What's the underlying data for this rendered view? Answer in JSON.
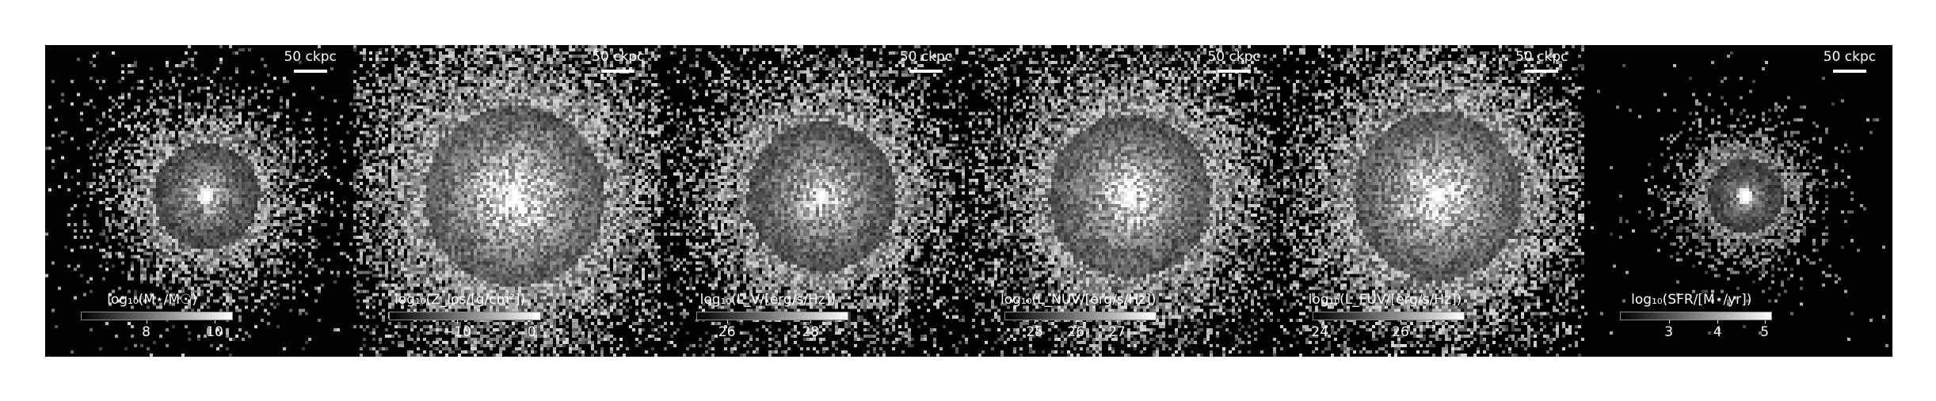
{
  "panels": [
    {
      "scale_label": "50 ckpc",
      "colorbar_label": "log₁₀(M⋆/M☉)",
      "ticks": [
        {
          "value": "8",
          "frac": 0.43
        },
        {
          "value": "10",
          "frac": 0.88
        }
      ],
      "brightness": 1.0,
      "spread": 0.85,
      "core": 1.0,
      "bg": 0.05
    },
    {
      "scale_label": "50 ckpc",
      "colorbar_label": "log₁₀(Z_los/[g/cm²])",
      "ticks": [
        {
          "value": "−10",
          "frac": 0.45
        },
        {
          "value": "0",
          "frac": 0.94
        }
      ],
      "brightness": 1.35,
      "spread": 1.45,
      "core": 1.0,
      "bg": 0.18
    },
    {
      "scale_label": "50 ckpc",
      "colorbar_label": "log₁₀(L_V/[erg/s/Hz])",
      "ticks": [
        {
          "value": "26",
          "frac": 0.2
        },
        {
          "value": "28",
          "frac": 0.75
        }
      ],
      "brightness": 1.15,
      "spread": 1.2,
      "core": 1.0,
      "bg": 0.1
    },
    {
      "scale_label": "50 ckpc",
      "colorbar_label": "log₁₀(L_NUV/[erg/s/Hz])",
      "ticks": [
        {
          "value": "25",
          "frac": 0.2
        },
        {
          "value": "26",
          "frac": 0.47
        },
        {
          "value": "27",
          "frac": 0.74
        }
      ],
      "brightness": 1.25,
      "spread": 1.3,
      "core": 1.0,
      "bg": 0.12
    },
    {
      "scale_label": "50 ckpc",
      "colorbar_label": "log₁₀(L_FUV/[erg/s/Hz])",
      "ticks": [
        {
          "value": "24",
          "frac": 0.05
        },
        {
          "value": "26",
          "frac": 0.58
        }
      ],
      "brightness": 1.3,
      "spread": 1.35,
      "core": 1.0,
      "bg": 0.12
    },
    {
      "scale_label": "50 ckpc",
      "colorbar_label": "log₁₀(SFR/[M⋆/yr])",
      "ticks": [
        {
          "value": "3",
          "frac": 0.32
        },
        {
          "value": "4",
          "frac": 0.64
        },
        {
          "value": "5",
          "frac": 0.95
        }
      ],
      "brightness": 0.8,
      "spread": 0.6,
      "core": 1.0,
      "bg": 0.02
    }
  ]
}
